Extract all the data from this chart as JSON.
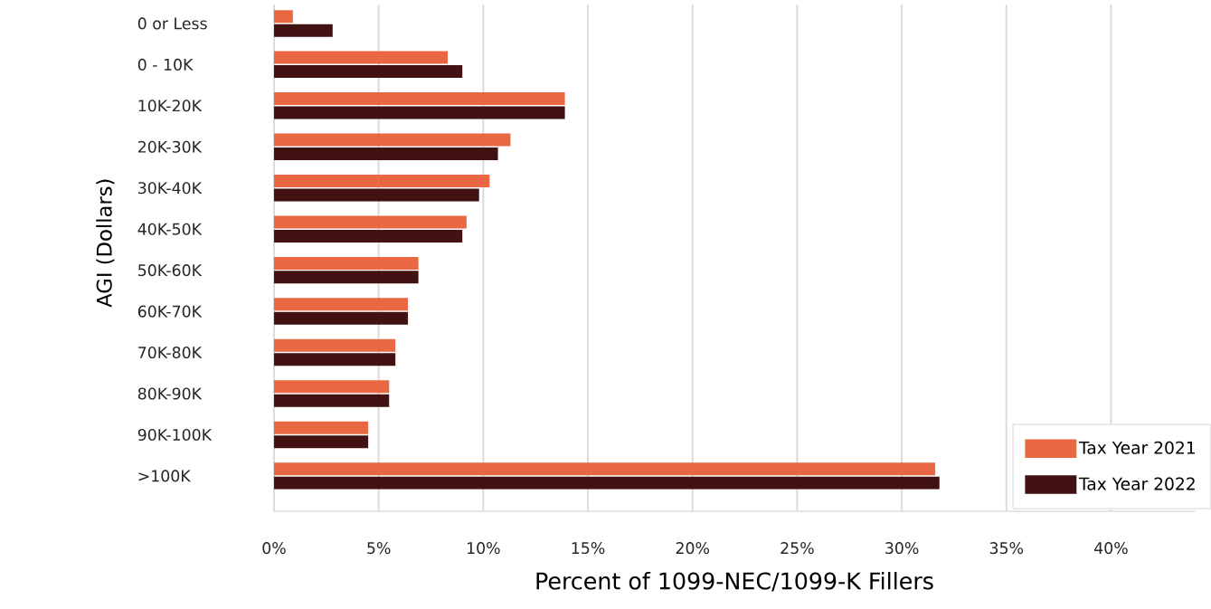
{
  "chart_data": {
    "type": "bar",
    "orientation": "horizontal",
    "xlabel": "Percent of 1099-NEC/1099-K Fillers",
    "ylabel": "AGI (Dollars)",
    "categories": [
      "0 or Less",
      "0 - 10K",
      "10K-20K",
      "20K-30K",
      "30K-40K",
      "40K-50K",
      "50K-60K",
      "60K-70K",
      "70K-80K",
      "80K-90K",
      "90K-100K",
      ">100K"
    ],
    "series": [
      {
        "name": "Tax Year 2021",
        "color": "#ea6744",
        "values": [
          0.9,
          8.3,
          13.9,
          11.3,
          10.3,
          9.2,
          6.9,
          6.4,
          5.8,
          5.5,
          4.5,
          31.6
        ]
      },
      {
        "name": "Tax Year 2022",
        "color": "#421111",
        "values": [
          2.8,
          9.0,
          13.9,
          10.7,
          9.8,
          9.0,
          6.9,
          6.4,
          5.8,
          5.5,
          4.5,
          31.8
        ]
      }
    ],
    "xlim": [
      0,
      44
    ],
    "xticks": [
      {
        "value": 0,
        "label": "0%"
      },
      {
        "value": 5,
        "label": "5%"
      },
      {
        "value": 10,
        "label": "10%"
      },
      {
        "value": 15,
        "label": "15%"
      },
      {
        "value": 20,
        "label": "20%"
      },
      {
        "value": 25,
        "label": "25%"
      },
      {
        "value": 30,
        "label": "30%"
      },
      {
        "value": 35,
        "label": "35%"
      },
      {
        "value": 40,
        "label": "40%"
      }
    ],
    "grid": "x",
    "legend": "bottom right"
  }
}
